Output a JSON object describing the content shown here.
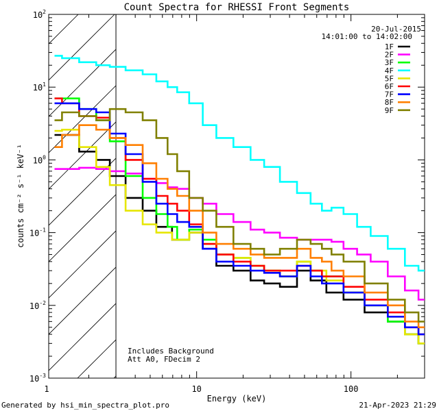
{
  "chart_data": {
    "type": "line",
    "title": "Count Spectra for RHESSI Front Segments",
    "xlabel": "Energy (keV)",
    "ylabel": "counts cm⁻² s⁻¹ keV⁻¹",
    "xscale": "log",
    "yscale": "log",
    "xlim": [
      1.1,
      300
    ],
    "ylim": [
      0.001,
      100
    ],
    "x_tick_labels": [
      {
        "value": 1,
        "label": "1"
      },
      {
        "value": 10,
        "label": "10"
      },
      {
        "value": 100,
        "label": "100"
      }
    ],
    "y_tick_labels": [
      {
        "value": 0.001,
        "base": "10",
        "exp": "-3"
      },
      {
        "value": 0.01,
        "base": "10",
        "exp": "-2"
      },
      {
        "value": 0.1,
        "base": "10",
        "exp": "-1"
      },
      {
        "value": 1,
        "base": "10",
        "exp": "0"
      },
      {
        "value": 10,
        "base": "10",
        "exp": "1"
      },
      {
        "value": 100,
        "base": "10",
        "exp": "2"
      }
    ],
    "hatched_region_kev": [
      1.1,
      3.0
    ],
    "date": "20-Jul-2015",
    "time_range": "14:01:00 to 14:02:00",
    "annotations": [
      "Includes Background",
      "Att A0, FDecim 2"
    ],
    "legend_position": "top-right",
    "series": [
      {
        "name": "1F",
        "color": "#000000",
        "points": [
          [
            1.2,
            2.2
          ],
          [
            1.5,
            2.2
          ],
          [
            2,
            1.3
          ],
          [
            2.5,
            1.0
          ],
          [
            3,
            0.6
          ],
          [
            4,
            0.3
          ],
          [
            5,
            0.2
          ],
          [
            6,
            0.12
          ],
          [
            8,
            0.08
          ],
          [
            10,
            0.1
          ],
          [
            12,
            0.06
          ],
          [
            15,
            0.035
          ],
          [
            20,
            0.03
          ],
          [
            25,
            0.022
          ],
          [
            30,
            0.02
          ],
          [
            40,
            0.018
          ],
          [
            50,
            0.03
          ],
          [
            60,
            0.022
          ],
          [
            80,
            0.015
          ],
          [
            100,
            0.012
          ],
          [
            150,
            0.008
          ],
          [
            200,
            0.006
          ],
          [
            250,
            0.004
          ],
          [
            300,
            0.003
          ]
        ]
      },
      {
        "name": "2F",
        "color": "#ff00ff",
        "points": [
          [
            1.2,
            0.75
          ],
          [
            1.5,
            0.75
          ],
          [
            2,
            0.78
          ],
          [
            2.5,
            0.75
          ],
          [
            3,
            0.7
          ],
          [
            4,
            0.65
          ],
          [
            5,
            0.55
          ],
          [
            6,
            0.48
          ],
          [
            7,
            0.42
          ],
          [
            8,
            0.4
          ],
          [
            10,
            0.3
          ],
          [
            12,
            0.25
          ],
          [
            15,
            0.18
          ],
          [
            20,
            0.14
          ],
          [
            25,
            0.11
          ],
          [
            30,
            0.1
          ],
          [
            40,
            0.085
          ],
          [
            50,
            0.08
          ],
          [
            60,
            0.08
          ],
          [
            70,
            0.08
          ],
          [
            80,
            0.075
          ],
          [
            100,
            0.06
          ],
          [
            120,
            0.05
          ],
          [
            150,
            0.04
          ],
          [
            200,
            0.025
          ],
          [
            250,
            0.016
          ],
          [
            300,
            0.012
          ]
        ]
      },
      {
        "name": "3F",
        "color": "#00ff00",
        "points": [
          [
            1.2,
            7
          ],
          [
            1.5,
            7
          ],
          [
            2,
            5
          ],
          [
            2.5,
            3.5
          ],
          [
            3,
            1.8
          ],
          [
            4,
            0.6
          ],
          [
            5,
            0.3
          ],
          [
            6,
            0.18
          ],
          [
            7,
            0.12
          ],
          [
            8,
            0.08
          ],
          [
            10,
            0.11
          ],
          [
            12,
            0.08
          ],
          [
            15,
            0.05
          ],
          [
            20,
            0.045
          ],
          [
            25,
            0.035
          ],
          [
            30,
            0.03
          ],
          [
            40,
            0.025
          ],
          [
            50,
            0.04
          ],
          [
            60,
            0.03
          ],
          [
            70,
            0.025
          ],
          [
            80,
            0.025
          ],
          [
            100,
            0.015
          ],
          [
            150,
            0.01
          ],
          [
            200,
            0.006
          ],
          [
            250,
            0.004
          ],
          [
            300,
            0.003
          ]
        ]
      },
      {
        "name": "4F",
        "color": "#00ffff",
        "points": [
          [
            1.2,
            27
          ],
          [
            1.5,
            25
          ],
          [
            2,
            22
          ],
          [
            2.5,
            20
          ],
          [
            3,
            19
          ],
          [
            4,
            17
          ],
          [
            5,
            15
          ],
          [
            6,
            12
          ],
          [
            7,
            10
          ],
          [
            8,
            8.5
          ],
          [
            10,
            6
          ],
          [
            12,
            3
          ],
          [
            15,
            2
          ],
          [
            20,
            1.5
          ],
          [
            25,
            1.0
          ],
          [
            30,
            0.8
          ],
          [
            40,
            0.5
          ],
          [
            50,
            0.35
          ],
          [
            60,
            0.25
          ],
          [
            70,
            0.2
          ],
          [
            80,
            0.22
          ],
          [
            100,
            0.18
          ],
          [
            120,
            0.12
          ],
          [
            150,
            0.09
          ],
          [
            200,
            0.06
          ],
          [
            250,
            0.035
          ],
          [
            300,
            0.03
          ]
        ]
      },
      {
        "name": "5F",
        "color": "#e6e600",
        "points": [
          [
            1.2,
            2.5
          ],
          [
            1.5,
            2.6
          ],
          [
            2,
            1.5
          ],
          [
            2.5,
            0.8
          ],
          [
            3,
            0.45
          ],
          [
            4,
            0.2
          ],
          [
            5,
            0.13
          ],
          [
            6,
            0.1
          ],
          [
            8,
            0.08
          ],
          [
            10,
            0.1
          ],
          [
            12,
            0.07
          ],
          [
            15,
            0.05
          ],
          [
            20,
            0.045
          ],
          [
            25,
            0.035
          ],
          [
            30,
            0.03
          ],
          [
            40,
            0.025
          ],
          [
            50,
            0.04
          ],
          [
            60,
            0.03
          ],
          [
            80,
            0.022
          ],
          [
            100,
            0.015
          ],
          [
            150,
            0.01
          ],
          [
            200,
            0.007
          ],
          [
            250,
            0.004
          ],
          [
            300,
            0.003
          ]
        ]
      },
      {
        "name": "6F",
        "color": "#ff0000",
        "points": [
          [
            1.2,
            7
          ],
          [
            1.5,
            6
          ],
          [
            2,
            4
          ],
          [
            2.5,
            3.8
          ],
          [
            3,
            2
          ],
          [
            4,
            1.0
          ],
          [
            5,
            0.55
          ],
          [
            6,
            0.32
          ],
          [
            7,
            0.25
          ],
          [
            8,
            0.2
          ],
          [
            10,
            0.13
          ],
          [
            12,
            0.07
          ],
          [
            15,
            0.05
          ],
          [
            20,
            0.04
          ],
          [
            25,
            0.035
          ],
          [
            30,
            0.03
          ],
          [
            40,
            0.03
          ],
          [
            50,
            0.035
          ],
          [
            60,
            0.03
          ],
          [
            70,
            0.025
          ],
          [
            80,
            0.025
          ],
          [
            100,
            0.018
          ],
          [
            150,
            0.012
          ],
          [
            200,
            0.008
          ],
          [
            250,
            0.005
          ],
          [
            300,
            0.004
          ]
        ]
      },
      {
        "name": "7F",
        "color": "#0000ff",
        "points": [
          [
            1.2,
            6
          ],
          [
            1.5,
            6
          ],
          [
            2,
            5
          ],
          [
            2.5,
            4.5
          ],
          [
            3,
            2.3
          ],
          [
            4,
            1.2
          ],
          [
            5,
            0.5
          ],
          [
            6,
            0.25
          ],
          [
            7,
            0.18
          ],
          [
            8,
            0.14
          ],
          [
            10,
            0.12
          ],
          [
            12,
            0.06
          ],
          [
            15,
            0.04
          ],
          [
            20,
            0.035
          ],
          [
            25,
            0.03
          ],
          [
            30,
            0.028
          ],
          [
            40,
            0.025
          ],
          [
            50,
            0.035
          ],
          [
            60,
            0.025
          ],
          [
            70,
            0.02
          ],
          [
            80,
            0.02
          ],
          [
            100,
            0.015
          ],
          [
            150,
            0.01
          ],
          [
            200,
            0.007
          ],
          [
            250,
            0.005
          ],
          [
            300,
            0.004
          ]
        ]
      },
      {
        "name": "8F",
        "color": "#ff7f00",
        "points": [
          [
            1.2,
            1.5
          ],
          [
            1.5,
            2.2
          ],
          [
            2,
            3.0
          ],
          [
            2.5,
            2.6
          ],
          [
            3,
            2.0
          ],
          [
            4,
            1.6
          ],
          [
            5,
            0.9
          ],
          [
            6,
            0.55
          ],
          [
            7,
            0.4
          ],
          [
            8,
            0.32
          ],
          [
            10,
            0.2
          ],
          [
            12,
            0.1
          ],
          [
            15,
            0.07
          ],
          [
            20,
            0.06
          ],
          [
            25,
            0.05
          ],
          [
            30,
            0.045
          ],
          [
            40,
            0.045
          ],
          [
            50,
            0.06
          ],
          [
            60,
            0.045
          ],
          [
            70,
            0.04
          ],
          [
            80,
            0.03
          ],
          [
            100,
            0.025
          ],
          [
            150,
            0.015
          ],
          [
            200,
            0.01
          ],
          [
            250,
            0.006
          ],
          [
            300,
            0.005
          ]
        ]
      },
      {
        "name": "9F",
        "color": "#808000",
        "points": [
          [
            1.2,
            3.5
          ],
          [
            1.5,
            4.5
          ],
          [
            2,
            4
          ],
          [
            2.5,
            3.5
          ],
          [
            3,
            5
          ],
          [
            4,
            4.5
          ],
          [
            5,
            3.5
          ],
          [
            6,
            2
          ],
          [
            7,
            1.2
          ],
          [
            8,
            0.7
          ],
          [
            10,
            0.3
          ],
          [
            12,
            0.2
          ],
          [
            15,
            0.12
          ],
          [
            20,
            0.07
          ],
          [
            25,
            0.06
          ],
          [
            30,
            0.05
          ],
          [
            40,
            0.06
          ],
          [
            50,
            0.08
          ],
          [
            60,
            0.07
          ],
          [
            70,
            0.06
          ],
          [
            80,
            0.05
          ],
          [
            100,
            0.04
          ],
          [
            150,
            0.02
          ],
          [
            200,
            0.012
          ],
          [
            250,
            0.008
          ],
          [
            300,
            0.006
          ]
        ]
      }
    ]
  },
  "footer": {
    "generated_by": "Generated by hsi_min_spectra_plot.pro",
    "timestamp": "21-Apr-2023 21:29"
  }
}
